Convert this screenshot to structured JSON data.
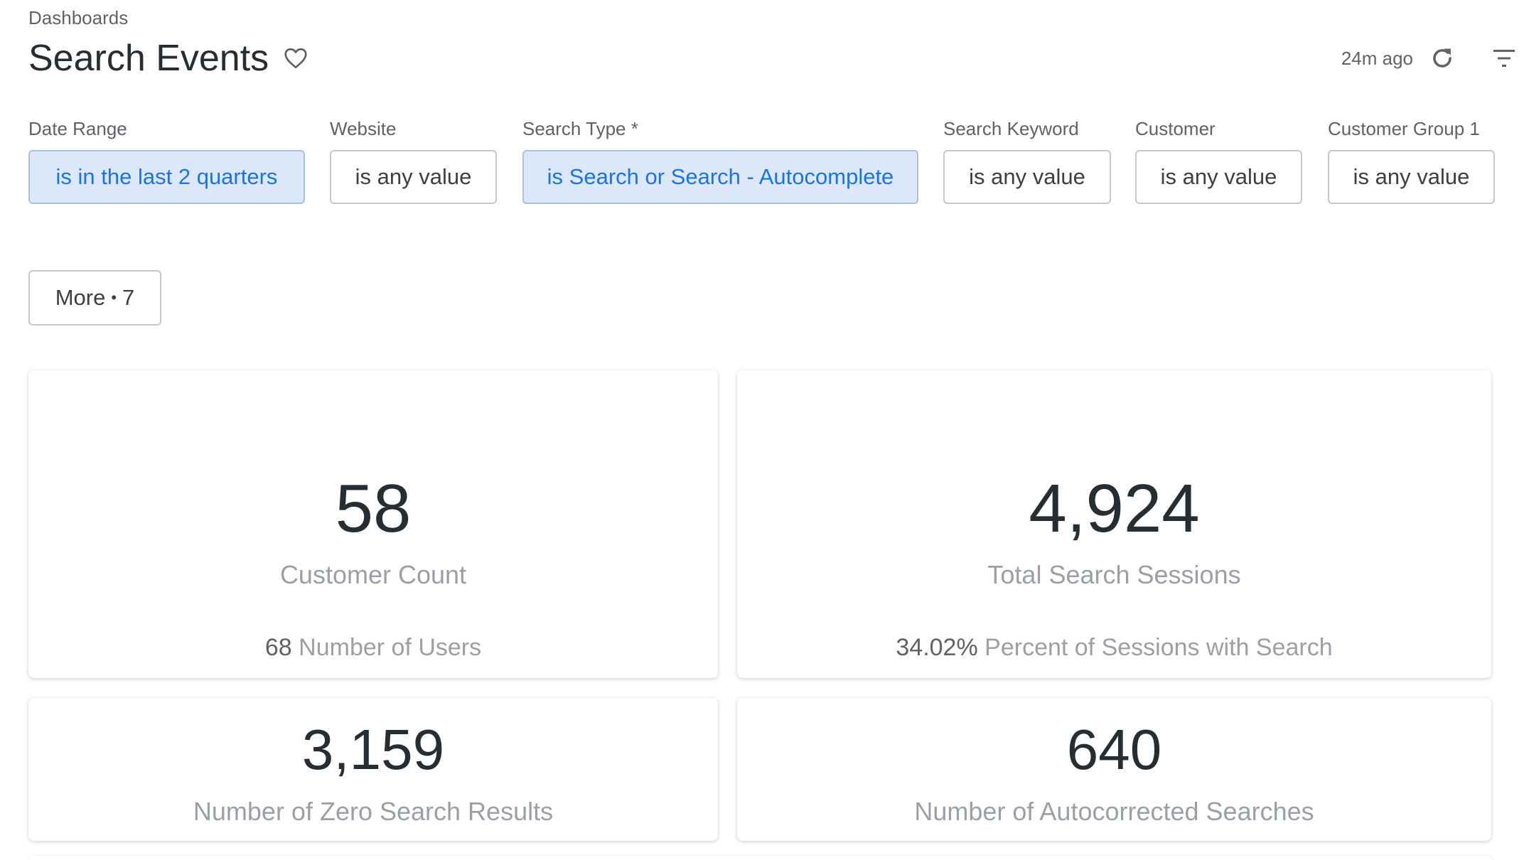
{
  "header": {
    "breadcrumb": "Dashboards",
    "title": "Search Events",
    "updated": "24m ago"
  },
  "icons": {
    "favorite": "heart-outline-icon",
    "refresh": "refresh-icon",
    "filter": "filter-lines-icon"
  },
  "filters": [
    {
      "label": "Date Range",
      "value": "is in the last 2 quarters",
      "active": true
    },
    {
      "label": "Website",
      "value": "is any value",
      "active": false
    },
    {
      "label": "Search Type *",
      "value": "is Search or Search - Autocomplete",
      "active": true
    },
    {
      "label": "Search Keyword",
      "value": "is any value",
      "active": false
    },
    {
      "label": "Customer",
      "value": "is any value",
      "active": false
    },
    {
      "label": "Customer Group 1",
      "value": "is any value",
      "active": false
    }
  ],
  "more_button": {
    "label": "More",
    "count": "7"
  },
  "kpis": [
    {
      "value": "58",
      "label": "Customer Count",
      "sub_value": "68",
      "sub_label": "Number of Users"
    },
    {
      "value": "4,924",
      "label": "Total Search Sessions",
      "sub_value": "34.02%",
      "sub_label": "Percent of Sessions with Search"
    },
    {
      "value": "3,159",
      "label": "Number of Zero Search Results"
    },
    {
      "value": "640",
      "label": "Number of Autocorrected Searches"
    }
  ],
  "colors": {
    "active_chip_bg": "#dce8fa",
    "active_chip_text": "#1a73e8",
    "text_primary": "#262d33",
    "text_secondary": "#5f6368",
    "text_muted": "#9aa0a6"
  }
}
